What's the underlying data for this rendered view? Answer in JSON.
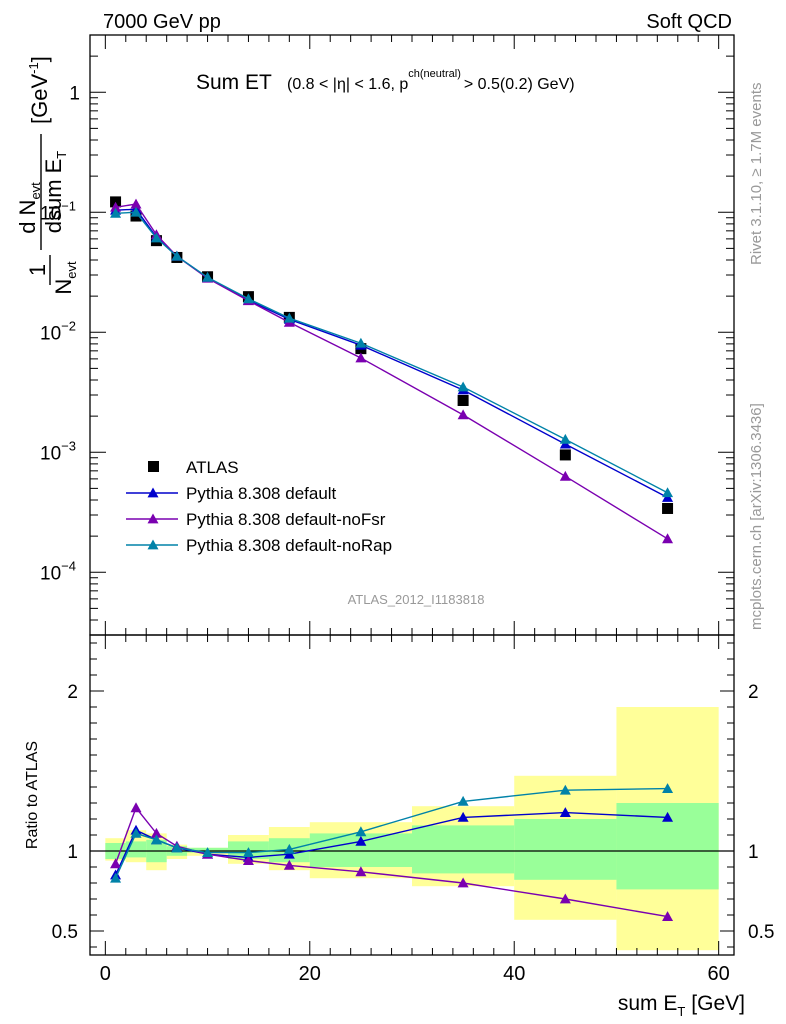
{
  "header": {
    "left": "7000 GeV pp",
    "right": "Soft QCD"
  },
  "title": {
    "main": "Sum ET",
    "cut": "(0.8 < |η| < 1.6, p",
    "cut_sup": "ch(neutral)",
    "cut_end": "> 0.5(0.2) GeV)"
  },
  "ylabel": {
    "frac_num": "1",
    "frac_den": "N",
    "frac_den_sub": "evt",
    "deriv_num": "d N",
    "deriv_num_sub": "evt",
    "deriv_den": "dsum E",
    "deriv_den_sub": "T",
    "unit": "[GeV",
    "unit_sup": "-1",
    "unit_end": "]"
  },
  "ratio_ylabel": "Ratio to ATLAS",
  "xlabel": {
    "main": "sum E",
    "sub": "T",
    "unit": "[GeV]"
  },
  "side_text": {
    "rivet": "Rivet 3.1.10, ≥ 1.7M events",
    "mcplots": "mcplots.cern.ch [arXiv:1306.3436]"
  },
  "watermark": "ATLAS_2012_I1183818",
  "colors": {
    "data": "#000000",
    "default": "#0000cc",
    "noFsr": "#7a00b0",
    "noRap": "#0082a8",
    "band_stat": "#99ff99",
    "band_total": "#ffff99"
  },
  "chart_data": {
    "type": "line",
    "xlim": [
      -1.5,
      61.5
    ],
    "x_ticks": [
      "0",
      "20",
      "40",
      "60"
    ],
    "main_yscale": "log",
    "main_ylim": [
      3e-05,
      3
    ],
    "main_y_ticks": [
      {
        "v": 1,
        "b": "1",
        "e": ""
      },
      {
        "v": 0.1,
        "b": "10",
        "e": "−1"
      },
      {
        "v": 0.01,
        "b": "10",
        "e": "−2"
      },
      {
        "v": 0.001,
        "b": "10",
        "e": "−3"
      },
      {
        "v": 0.0001,
        "b": "10",
        "e": "−4"
      }
    ],
    "ratio_ylim": [
      0.35,
      2.35
    ],
    "ratio_y_ticks": [
      "0.5",
      "1",
      "2"
    ],
    "x": [
      1,
      3,
      5,
      7,
      10,
      14,
      18,
      25,
      35,
      45,
      55
    ],
    "bin_edges": [
      0,
      2,
      4,
      6,
      8,
      12,
      16,
      20,
      30,
      40,
      50,
      60
    ],
    "series": [
      {
        "name": "ATLAS",
        "key": "data",
        "values": [
          0.122,
          0.093,
          0.058,
          0.042,
          0.029,
          0.0198,
          0.0133,
          0.0073,
          0.0027,
          0.00095,
          0.00034
        ],
        "ratio": [
          1,
          1,
          1,
          1,
          1,
          1,
          1,
          1,
          1,
          1,
          1
        ]
      },
      {
        "name": "Pythia 8.308 default",
        "key": "default",
        "values": [
          0.104,
          0.106,
          0.062,
          0.043,
          0.0285,
          0.0185,
          0.0128,
          0.0078,
          0.0033,
          0.00117,
          0.00042
        ],
        "ratio": [
          0.85,
          1.13,
          1.07,
          1.02,
          0.98,
          0.96,
          0.98,
          1.06,
          1.21,
          1.24,
          1.21
        ]
      },
      {
        "name": "Pythia 8.308 default-noFsr",
        "key": "noFsr",
        "values": [
          0.11,
          0.117,
          0.065,
          0.043,
          0.0282,
          0.0183,
          0.0121,
          0.0061,
          0.00205,
          0.00063,
          0.00019
        ],
        "ratio": [
          0.92,
          1.27,
          1.11,
          1.03,
          0.98,
          0.94,
          0.91,
          0.87,
          0.8,
          0.7,
          0.59
        ]
      },
      {
        "name": "Pythia 8.308 default-noRap",
        "key": "noRap",
        "values": [
          0.098,
          0.1,
          0.061,
          0.043,
          0.0287,
          0.019,
          0.0131,
          0.0081,
          0.0035,
          0.00128,
          0.00046
        ],
        "ratio": [
          0.83,
          1.11,
          1.07,
          1.02,
          0.99,
          0.99,
          1.01,
          1.12,
          1.31,
          1.38,
          1.39
        ]
      }
    ],
    "band_stat": [
      [
        0.95,
        1.05
      ],
      [
        0.96,
        1.06
      ],
      [
        0.93,
        1.07
      ],
      [
        0.97,
        1.03
      ],
      [
        0.99,
        1.02
      ],
      [
        0.95,
        1.06
      ],
      [
        0.93,
        1.08
      ],
      [
        0.9,
        1.11
      ],
      [
        0.86,
        1.16
      ],
      [
        0.82,
        1.2
      ],
      [
        0.76,
        1.3
      ]
    ],
    "band_total": [
      [
        0.94,
        1.08
      ],
      [
        0.93,
        1.13
      ],
      [
        0.88,
        1.11
      ],
      [
        0.95,
        1.04
      ],
      [
        0.97,
        1.02
      ],
      [
        0.92,
        1.1
      ],
      [
        0.88,
        1.15
      ],
      [
        0.83,
        1.18
      ],
      [
        0.78,
        1.28
      ],
      [
        0.57,
        1.47
      ],
      [
        0.38,
        1.9
      ]
    ]
  }
}
